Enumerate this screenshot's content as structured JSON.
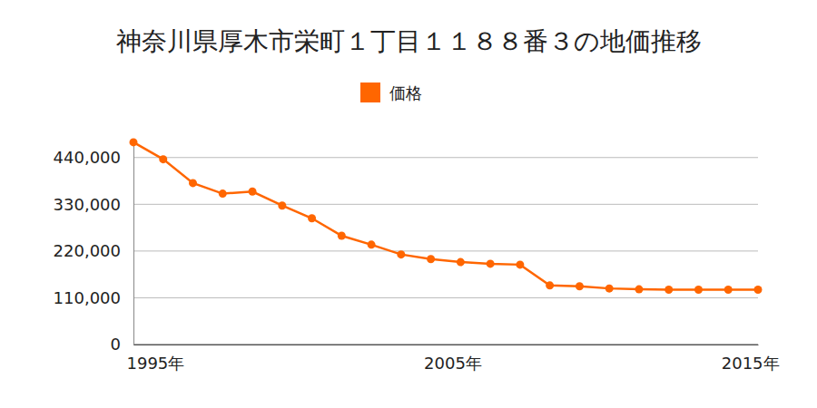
{
  "chart_data": {
    "type": "line",
    "title": "神奈川県厚木市栄町１丁目１１８８番３の地価推移",
    "x": [
      1995,
      1996,
      1997,
      1998,
      1999,
      2000,
      2001,
      2002,
      2003,
      2004,
      2005,
      2006,
      2007,
      2008,
      2009,
      2010,
      2011,
      2012,
      2013,
      2014,
      2015,
      2016
    ],
    "series": [
      {
        "name": "価格",
        "color": "#ff6600",
        "marker": "circle",
        "values": [
          476000,
          436000,
          380000,
          355000,
          360000,
          327000,
          297000,
          256000,
          235000,
          212000,
          201000,
          194000,
          190000,
          188000,
          139000,
          137000,
          132000,
          130000,
          129000,
          129000,
          129000,
          129000
        ]
      }
    ],
    "xlim": [
      1995,
      2016
    ],
    "ylim": [
      0,
      480000
    ],
    "xticks": [
      {
        "value": 1995,
        "label": "1995年"
      },
      {
        "value": 2005,
        "label": "2005年"
      },
      {
        "value": 2015,
        "label": "2015年"
      }
    ],
    "yticks": [
      0,
      {
        "value": 110000,
        "label": "110,000"
      },
      {
        "value": 220000,
        "label": "220,000"
      },
      {
        "value": 330000,
        "label": "330,000"
      },
      {
        "value": 440000,
        "label": "440,000"
      }
    ],
    "grid": true,
    "legend": "top"
  }
}
